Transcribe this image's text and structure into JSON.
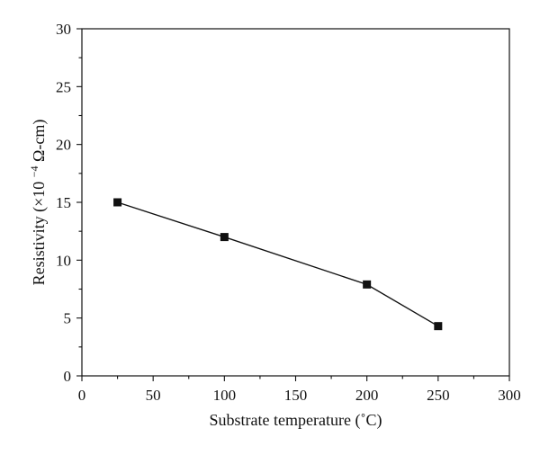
{
  "chart_data": {
    "type": "line",
    "title": "",
    "xlabel": "Substrate temperature (˚C)",
    "ylabel_main": "Resistivity (×10",
    "ylabel_exp": "−4",
    "ylabel_tail": " Ω-cm)",
    "x": [
      25,
      100,
      200,
      250
    ],
    "series": [
      {
        "values": [
          15.0,
          12.0,
          7.9,
          4.3
        ],
        "marker": "square",
        "color": "#111111"
      }
    ],
    "xlim": [
      0,
      300
    ],
    "ylim": [
      0,
      30
    ],
    "xticks": [
      0,
      50,
      100,
      150,
      200,
      250,
      300
    ],
    "yticks": [
      0,
      5,
      10,
      15,
      20,
      25,
      30
    ],
    "xtick_labels": [
      "0",
      "50",
      "100",
      "150",
      "200",
      "250",
      "300"
    ],
    "ytick_labels": [
      "0",
      "5",
      "10",
      "15",
      "20",
      "25",
      "30"
    ],
    "grid": false,
    "legend": false
  }
}
